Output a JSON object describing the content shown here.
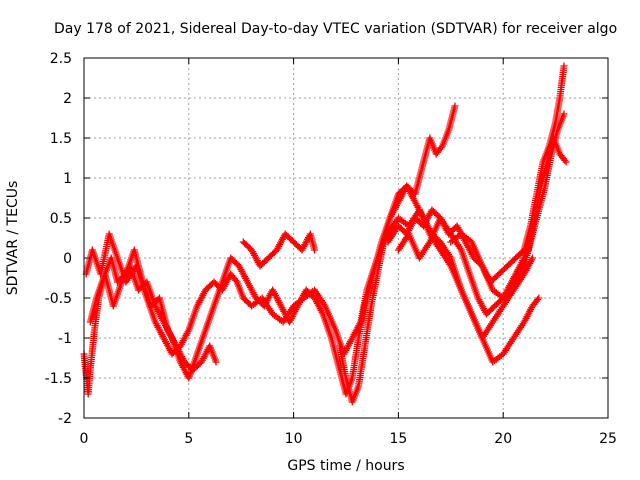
{
  "chart_data": {
    "type": "scatter",
    "title": "Day 178 of 2021, Sidereal Day-to-day VTEC variation (SDTVAR) for receiver algo",
    "xlabel": "GPS time / hours",
    "ylabel": "SDTVAR / TECUs",
    "xlim": [
      0,
      25
    ],
    "ylim": [
      -2,
      2.5
    ],
    "xticks": [
      0,
      5,
      10,
      15,
      20,
      25
    ],
    "yticks": [
      -2,
      -1.5,
      -1,
      -0.5,
      0,
      0.5,
      1,
      1.5,
      2,
      2.5
    ],
    "xtick_labels": [
      "0",
      "5",
      "10",
      "15",
      "20",
      "25"
    ],
    "ytick_labels": [
      "-2",
      "-1.5",
      "-1",
      "-0.5",
      "0",
      "0.5",
      "1",
      "1.5",
      "2",
      "2.5"
    ],
    "grid": true,
    "marker": "+",
    "color": "#ff0000",
    "series": [
      {
        "x": [
          0.0,
          0.2,
          0.3,
          0.5,
          0.7,
          1.0,
          1.3,
          1.6,
          2.0,
          2.4,
          2.8,
          3.2,
          3.6,
          4.0,
          4.4,
          4.8,
          5.2,
          5.6,
          6.0,
          6.3
        ],
        "y": [
          -1.2,
          -1.7,
          -1.4,
          -0.9,
          -0.5,
          -0.2,
          0.0,
          -0.3,
          -0.2,
          0.1,
          -0.3,
          -0.6,
          -0.5,
          -0.9,
          -1.1,
          -1.3,
          -1.4,
          -1.3,
          -1.1,
          -1.3
        ]
      },
      {
        "x": [
          0.1,
          0.4,
          0.8,
          1.2,
          1.6,
          2.0,
          2.5,
          3.0,
          3.4,
          3.8,
          4.2,
          4.6,
          5.0,
          5.4,
          5.8,
          6.2,
          6.6,
          7.0,
          7.3,
          7.6,
          8.0,
          8.5,
          9.0,
          9.5,
          10.0,
          10.5,
          11.0,
          11.5,
          12.0,
          12.4,
          12.8,
          13.2,
          13.5,
          14.0,
          14.5,
          15.0,
          15.5,
          16.0,
          16.5,
          17.0,
          17.5,
          18.0,
          18.5,
          19.0,
          19.5,
          20.0,
          20.5,
          21.0,
          21.4,
          21.7
        ],
        "y": [
          -0.2,
          0.1,
          -0.2,
          0.3,
          0.0,
          -0.3,
          -0.1,
          -0.5,
          -0.8,
          -1.0,
          -1.2,
          -1.1,
          -0.9,
          -0.6,
          -0.4,
          -0.3,
          -0.4,
          -0.2,
          -0.3,
          -0.5,
          -0.6,
          -0.5,
          -0.7,
          -0.8,
          -0.6,
          -0.5,
          -0.4,
          -0.6,
          -0.9,
          -1.2,
          -1.0,
          -0.8,
          -0.4,
          0.0,
          0.3,
          0.5,
          0.4,
          0.6,
          0.3,
          0.1,
          -0.1,
          -0.4,
          -0.7,
          -1.0,
          -1.3,
          -1.2,
          -1.0,
          -0.8,
          -0.6,
          -0.5
        ]
      },
      {
        "x": [
          0.3,
          0.6,
          1.0,
          1.4,
          1.8,
          2.2,
          2.6,
          3.0,
          3.4,
          3.8,
          4.2,
          4.6,
          5.0,
          5.4,
          5.8,
          6.2,
          6.6,
          7.0,
          7.4,
          7.8,
          8.2,
          8.6,
          9.0,
          9.4,
          9.8,
          10.2,
          10.6,
          11.0,
          11.4,
          11.8,
          12.2,
          12.5,
          12.8,
          13.1,
          13.4,
          13.8,
          14.2,
          14.6,
          15.0,
          15.4,
          15.8,
          16.2,
          16.6,
          17.0,
          17.5,
          18.0,
          18.5,
          19.0,
          19.5,
          20.0,
          20.5,
          21.0,
          21.4
        ],
        "y": [
          -0.8,
          -0.5,
          -0.2,
          -0.6,
          -0.3,
          -0.1,
          -0.4,
          -0.3,
          -0.6,
          -0.8,
          -1.0,
          -1.3,
          -1.5,
          -1.2,
          -0.9,
          -0.6,
          -0.3,
          0.0,
          -0.1,
          -0.3,
          -0.5,
          -0.6,
          -0.4,
          -0.6,
          -0.8,
          -0.6,
          -0.4,
          -0.5,
          -0.7,
          -1.0,
          -1.4,
          -1.7,
          -1.5,
          -1.0,
          -0.6,
          -0.2,
          0.2,
          0.5,
          0.8,
          0.9,
          0.7,
          0.5,
          0.3,
          0.2,
          0.0,
          -0.4,
          -0.7,
          -1.0,
          -0.8,
          -0.6,
          -0.4,
          -0.2,
          0.0
        ]
      },
      {
        "x": [
          7.6,
          8.0,
          8.4,
          8.8,
          9.2,
          9.6,
          10.0,
          10.4,
          10.8,
          11.0
        ],
        "y": [
          0.2,
          0.1,
          -0.1,
          0.0,
          0.1,
          0.3,
          0.2,
          0.1,
          0.3,
          0.1
        ]
      },
      {
        "x": [
          12.2,
          12.5,
          12.8,
          13.1,
          13.4,
          13.7,
          14.0,
          14.3,
          14.6,
          15.0,
          15.4,
          15.8,
          16.2,
          16.5,
          16.8,
          17.1,
          17.4,
          17.7
        ],
        "y": [
          -1.1,
          -1.5,
          -1.8,
          -1.6,
          -1.1,
          -0.6,
          -0.2,
          0.2,
          0.5,
          0.7,
          0.9,
          0.8,
          1.2,
          1.5,
          1.3,
          1.4,
          1.6,
          1.9
        ]
      },
      {
        "x": [
          14.5,
          15.0,
          15.4,
          15.8,
          16.2,
          16.6,
          17.0,
          17.4,
          17.8,
          18.2,
          18.6,
          19.0,
          19.4,
          19.8,
          20.2,
          20.6,
          21.0,
          21.3,
          21.6,
          21.9,
          22.2,
          22.5,
          22.7,
          22.9
        ],
        "y": [
          0.2,
          0.4,
          0.3,
          0.5,
          0.4,
          0.6,
          0.5,
          0.3,
          0.4,
          0.2,
          0.0,
          -0.1,
          -0.3,
          -0.2,
          -0.1,
          0.0,
          0.1,
          0.4,
          0.8,
          1.2,
          1.4,
          1.7,
          2.0,
          2.4
        ]
      },
      {
        "x": [
          15.0,
          15.5,
          16.0,
          16.5,
          17.0,
          17.5,
          18.0,
          18.4,
          18.8,
          19.2,
          19.6,
          20.0,
          20.4,
          20.8,
          21.2,
          21.5,
          21.8,
          22.1,
          22.4,
          22.7,
          23.0
        ],
        "y": [
          0.1,
          0.3,
          0.0,
          0.2,
          0.5,
          0.3,
          0.1,
          -0.2,
          -0.5,
          -0.7,
          -0.6,
          -0.5,
          -0.3,
          -0.1,
          0.1,
          0.5,
          0.9,
          1.2,
          1.5,
          1.3,
          1.2
        ]
      },
      {
        "x": [
          17.5,
          18.0,
          18.5,
          19.0,
          19.5,
          20.0,
          20.5,
          21.0,
          21.5,
          22.0,
          22.3,
          22.6,
          22.9
        ],
        "y": [
          0.2,
          0.3,
          0.2,
          -0.1,
          -0.4,
          -0.5,
          -0.3,
          -0.1,
          0.4,
          0.9,
          1.3,
          1.6,
          1.8
        ]
      }
    ]
  }
}
